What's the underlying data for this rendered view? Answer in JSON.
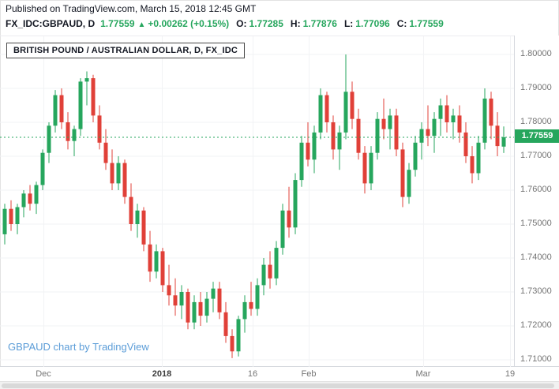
{
  "header": {
    "published": "Published on TradingView.com, March 15, 2018 12:45 GMT",
    "symbol": "FX_IDC:GBPAUD, D",
    "last_price": "1.77559",
    "change_arrow": "▲",
    "change": "+0.00262 (+0.15%)",
    "ohlc": [
      {
        "label": "O:",
        "value": "1.77285"
      },
      {
        "label": "H:",
        "value": "1.77876"
      },
      {
        "label": "L:",
        "value": "1.77096"
      },
      {
        "label": "C:",
        "value": "1.77559"
      }
    ]
  },
  "chart_data": {
    "type": "candlestick",
    "title": "BRITISH POUND / AUSTRALIAN DOLLAR, D, FX_IDC",
    "watermark": "GBPAUD chart by TradingView",
    "last_label": "1.77559",
    "current_price": 1.77559,
    "ylim": [
      1.71,
      1.8
    ],
    "grid": true,
    "colors": {
      "up": "#26a65d",
      "down": "#e04038",
      "label_bg": "#26a65d",
      "axis_text": "#757575",
      "grid": "#f2f3f5"
    },
    "y_axis": {
      "ticks": [
        "1.80000",
        "1.79000",
        "1.78000",
        "1.77000",
        "1.76000",
        "1.75000",
        "1.74000",
        "1.73000",
        "1.72000",
        "1.71000"
      ]
    },
    "x_ticks": [
      {
        "label": "Dec",
        "pos": 0.085,
        "bold": false
      },
      {
        "label": "2018",
        "pos": 0.315,
        "bold": true
      },
      {
        "label": "16",
        "pos": 0.492,
        "bold": false
      },
      {
        "label": "Feb",
        "pos": 0.6,
        "bold": false
      },
      {
        "label": "Mar",
        "pos": 0.823,
        "bold": false
      },
      {
        "label": "19",
        "pos": 0.992,
        "bold": false
      }
    ],
    "candles": [
      [
        1.747,
        1.756,
        1.744,
        1.7545
      ],
      [
        1.7545,
        1.757,
        1.748,
        1.75
      ],
      [
        1.75,
        1.756,
        1.747,
        1.755
      ],
      [
        1.755,
        1.76,
        1.752,
        1.759
      ],
      [
        1.759,
        1.7615,
        1.754,
        1.756
      ],
      [
        1.756,
        1.7625,
        1.753,
        1.7615
      ],
      [
        1.7615,
        1.772,
        1.76,
        1.771
      ],
      [
        1.771,
        1.78,
        1.768,
        1.779
      ],
      [
        1.779,
        1.7895,
        1.777,
        1.788
      ],
      [
        1.788,
        1.79,
        1.778,
        1.78
      ],
      [
        1.78,
        1.783,
        1.772,
        1.7745
      ],
      [
        1.7745,
        1.779,
        1.77,
        1.778
      ],
      [
        1.778,
        1.793,
        1.776,
        1.792
      ],
      [
        1.792,
        1.795,
        1.785,
        1.793
      ],
      [
        1.793,
        1.794,
        1.78,
        1.782
      ],
      [
        1.782,
        1.785,
        1.772,
        1.774
      ],
      [
        1.774,
        1.778,
        1.766,
        1.768
      ],
      [
        1.768,
        1.772,
        1.76,
        1.762
      ],
      [
        1.762,
        1.77,
        1.76,
        1.768
      ],
      [
        1.768,
        1.769,
        1.756,
        1.758
      ],
      [
        1.758,
        1.762,
        1.748,
        1.75
      ],
      [
        1.75,
        1.756,
        1.746,
        1.754
      ],
      [
        1.754,
        1.755,
        1.742,
        1.744
      ],
      [
        1.744,
        1.748,
        1.733,
        1.736
      ],
      [
        1.736,
        1.744,
        1.734,
        1.742
      ],
      [
        1.742,
        1.743,
        1.73,
        1.732
      ],
      [
        1.732,
        1.738,
        1.726,
        1.729
      ],
      [
        1.729,
        1.734,
        1.723,
        1.726
      ],
      [
        1.726,
        1.732,
        1.722,
        1.73
      ],
      [
        1.73,
        1.731,
        1.719,
        1.721
      ],
      [
        1.721,
        1.729,
        1.719,
        1.727
      ],
      [
        1.727,
        1.73,
        1.72,
        1.723
      ],
      [
        1.723,
        1.73,
        1.721,
        1.728
      ],
      [
        1.728,
        1.733,
        1.724,
        1.731
      ],
      [
        1.731,
        1.733,
        1.722,
        1.724
      ],
      [
        1.724,
        1.727,
        1.715,
        1.717
      ],
      [
        1.717,
        1.719,
        1.7105,
        1.7125
      ],
      [
        1.7125,
        1.723,
        1.711,
        1.722
      ],
      [
        1.722,
        1.729,
        1.718,
        1.727
      ],
      [
        1.727,
        1.733,
        1.723,
        1.725
      ],
      [
        1.725,
        1.734,
        1.723,
        1.732
      ],
      [
        1.732,
        1.74,
        1.729,
        1.738
      ],
      [
        1.738,
        1.742,
        1.731,
        1.734
      ],
      [
        1.734,
        1.745,
        1.732,
        1.743
      ],
      [
        1.743,
        1.756,
        1.741,
        1.754
      ],
      [
        1.754,
        1.761,
        1.746,
        1.749
      ],
      [
        1.749,
        1.765,
        1.747,
        1.763
      ],
      [
        1.763,
        1.776,
        1.761,
        1.774
      ],
      [
        1.774,
        1.78,
        1.767,
        1.769
      ],
      [
        1.769,
        1.779,
        1.765,
        1.777
      ],
      [
        1.777,
        1.79,
        1.775,
        1.788
      ],
      [
        1.788,
        1.789,
        1.777,
        1.78
      ],
      [
        1.78,
        1.782,
        1.769,
        1.772
      ],
      [
        1.772,
        1.779,
        1.766,
        1.777
      ],
      [
        1.777,
        1.8,
        1.775,
        1.789
      ],
      [
        1.789,
        1.792,
        1.778,
        1.781
      ],
      [
        1.781,
        1.784,
        1.769,
        1.771
      ],
      [
        1.771,
        1.773,
        1.759,
        1.762
      ],
      [
        1.762,
        1.773,
        1.76,
        1.771
      ],
      [
        1.771,
        1.783,
        1.769,
        1.781
      ],
      [
        1.781,
        1.787,
        1.775,
        1.778
      ],
      [
        1.778,
        1.784,
        1.772,
        1.782
      ],
      [
        1.782,
        1.784,
        1.77,
        1.772
      ],
      [
        1.772,
        1.774,
        1.755,
        1.758
      ],
      [
        1.758,
        1.768,
        1.756,
        1.766
      ],
      [
        1.766,
        1.776,
        1.764,
        1.774
      ],
      [
        1.774,
        1.78,
        1.769,
        1.778
      ],
      [
        1.778,
        1.785,
        1.773,
        1.776
      ],
      [
        1.776,
        1.783,
        1.771,
        1.781
      ],
      [
        1.781,
        1.787,
        1.776,
        1.785
      ],
      [
        1.785,
        1.788,
        1.777,
        1.78
      ],
      [
        1.78,
        1.784,
        1.775,
        1.782
      ],
      [
        1.782,
        1.785,
        1.774,
        1.777
      ],
      [
        1.777,
        1.78,
        1.768,
        1.77
      ],
      [
        1.77,
        1.773,
        1.762,
        1.765
      ],
      [
        1.765,
        1.776,
        1.763,
        1.774
      ],
      [
        1.774,
        1.79,
        1.772,
        1.787
      ],
      [
        1.787,
        1.789,
        1.775,
        1.779
      ],
      [
        1.779,
        1.783,
        1.77,
        1.773
      ],
      [
        1.77285,
        1.77876,
        1.77096,
        1.77559
      ]
    ]
  }
}
